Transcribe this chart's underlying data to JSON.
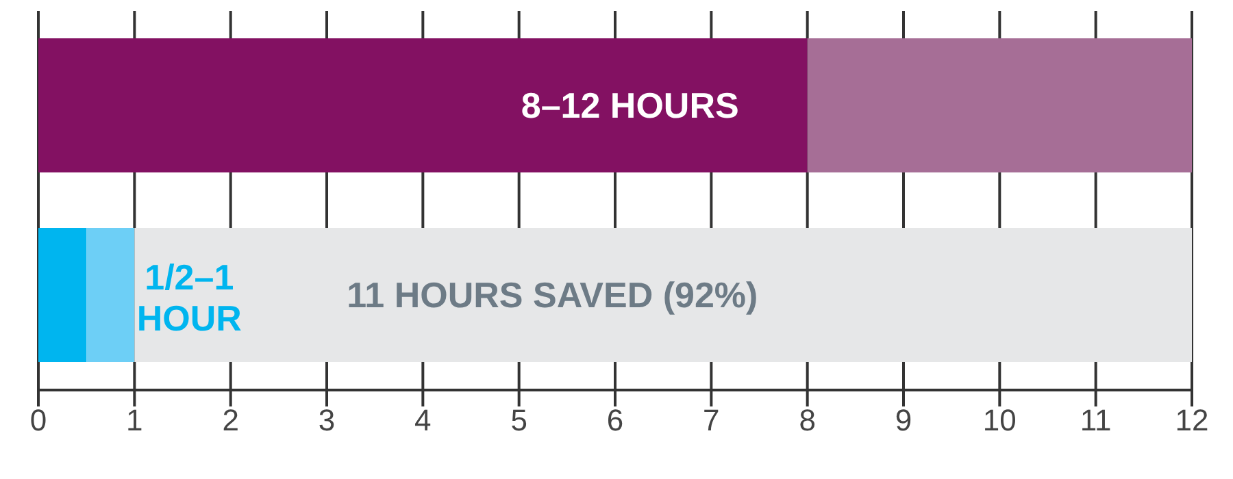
{
  "chart_data": {
    "type": "bar",
    "orientation": "horizontal",
    "stacked": true,
    "categories": [
      null,
      null
    ],
    "series": [
      {
        "colors": [
          "#831162",
          "#00b5ef"
        ],
        "values": [
          8,
          0.5
        ],
        "value_labels": [
          "8–12 HOURS",
          null
        ]
      },
      {
        "colors": [
          "#a66e96",
          "#6dcff6"
        ],
        "values": [
          4,
          0.5
        ],
        "value_labels": [
          null,
          "1/2–1 HOUR"
        ]
      },
      {
        "colors": [
          "#e6e7e8",
          "#e6e7e8"
        ],
        "values": [
          null,
          11
        ],
        "value_labels": [
          null,
          "11 HOURS SAVED (92%)"
        ]
      }
    ],
    "xlim": [
      0,
      12
    ],
    "xticks": [
      0,
      1,
      2,
      3,
      4,
      5,
      6,
      7,
      8,
      9,
      10,
      11,
      12
    ],
    "grid": "x"
  }
}
